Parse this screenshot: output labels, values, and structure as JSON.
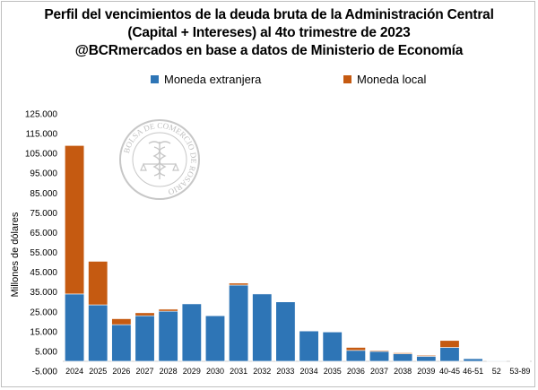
{
  "chart_data": {
    "type": "bar",
    "stacked": true,
    "title_lines": [
      "Perfil del vencimientos de la deuda bruta de la Administración Central",
      "(Capital + Intereses) al 4to trimestre de 2023",
      "@BCRmercados en base a datos de Ministerio de Economía"
    ],
    "ylabel": "Millones de dólares",
    "xlabel": "",
    "ylim": [
      -5000,
      125000
    ],
    "ytick_values": [
      -5000,
      5000,
      15000,
      25000,
      35000,
      45000,
      55000,
      65000,
      75000,
      85000,
      95000,
      105000,
      115000,
      125000
    ],
    "ytick_labels": [
      "-5.000",
      "5.000",
      "15.000",
      "25.000",
      "35.000",
      "45.000",
      "55.000",
      "65.000",
      "75.000",
      "85.000",
      "95.000",
      "105.000",
      "115.000",
      "125.000"
    ],
    "categories": [
      "2024",
      "2025",
      "2026",
      "2027",
      "2028",
      "2029",
      "2030",
      "2031",
      "2032",
      "2033",
      "2034",
      "2035",
      "2036",
      "2037",
      "2038",
      "2039",
      "40-45",
      "46-51",
      "52",
      "53-89"
    ],
    "series": [
      {
        "name": "Moneda extranjera",
        "color": "#2e75b6",
        "values": [
          34000,
          28500,
          18500,
          23000,
          25300,
          29000,
          23000,
          38500,
          34000,
          30000,
          15300,
          14800,
          5500,
          5000,
          3800,
          2500,
          7000,
          1300,
          300,
          150
        ]
      },
      {
        "name": "Moneda local",
        "color": "#c55a11",
        "values": [
          75000,
          22000,
          3000,
          1500,
          1000,
          0,
          0,
          1000,
          0,
          0,
          0,
          0,
          1500,
          500,
          500,
          500,
          3500,
          0,
          0,
          0
        ]
      }
    ],
    "legend_position": "top",
    "grid": false
  },
  "watermark": {
    "text": "BOLSA DE COMERCIO DE ROSARIO",
    "icon": "caduceus-scales-seal"
  }
}
